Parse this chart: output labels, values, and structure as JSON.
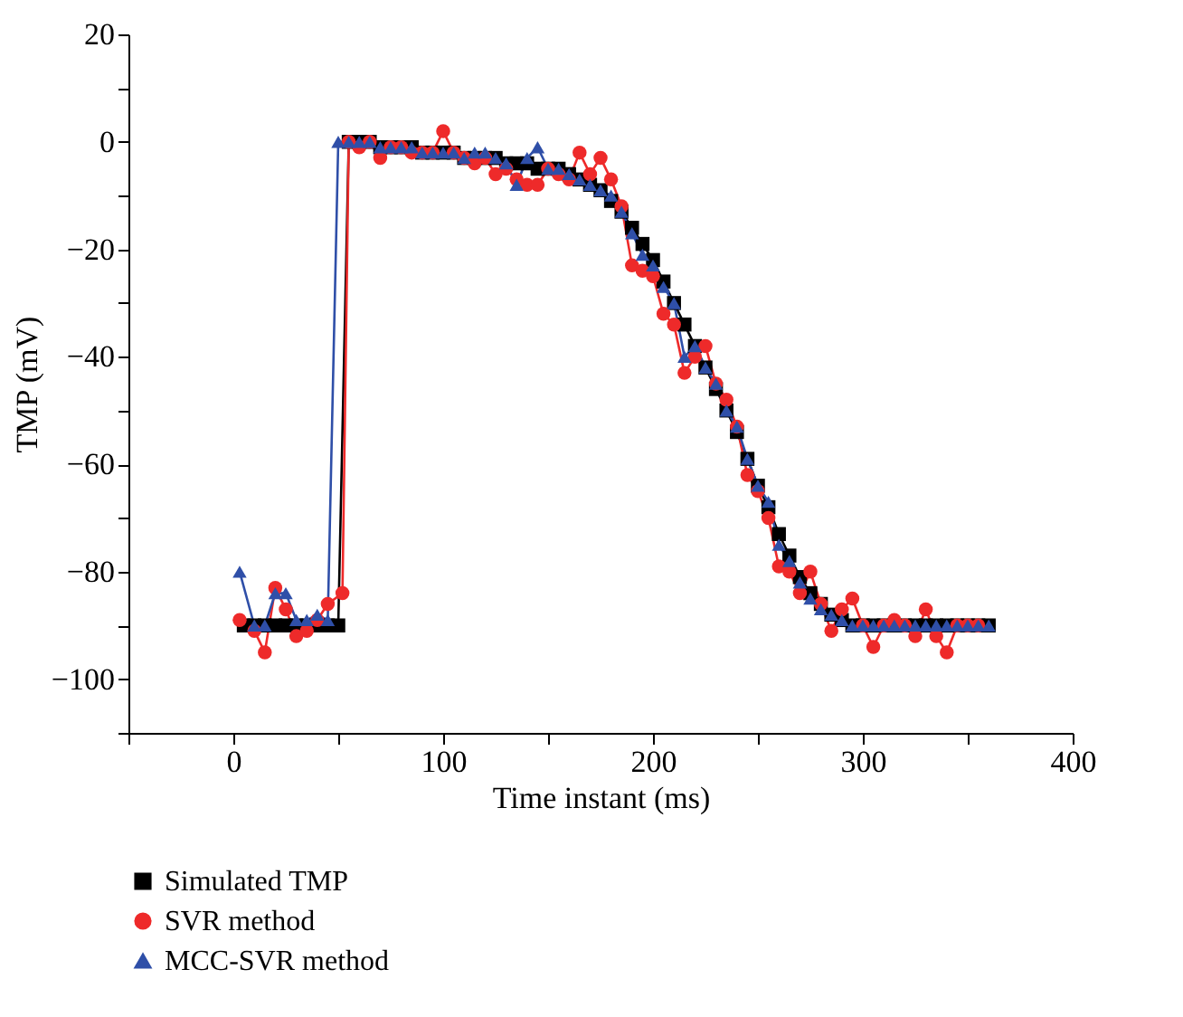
{
  "chart_data": {
    "type": "line",
    "xlabel": "Time instant (ms)",
    "ylabel": "TMP (mV)",
    "xlim": [
      -50,
      400
    ],
    "ylim": [
      -110,
      20
    ],
    "xticks": [
      {
        "value": -50,
        "label": null
      },
      0,
      {
        "value": 50,
        "label": null
      },
      100,
      {
        "value": 150,
        "label": null
      },
      200,
      {
        "value": 250,
        "label": null
      },
      300,
      {
        "value": 350,
        "label": null
      },
      400
    ],
    "yticks": [
      {
        "value": -110,
        "label": null
      },
      {
        "value": -100,
        "label": "−100"
      },
      {
        "value": -90,
        "label": null
      },
      {
        "value": -80,
        "label": "−80"
      },
      {
        "value": -70,
        "label": null
      },
      {
        "value": -60,
        "label": "−60"
      },
      {
        "value": -50,
        "label": null
      },
      {
        "value": -40,
        "label": "−40"
      },
      {
        "value": -30,
        "label": null
      },
      {
        "value": -20,
        "label": "−20"
      },
      {
        "value": -10,
        "label": null
      },
      0,
      {
        "value": 10,
        "label": null
      },
      20
    ],
    "grid": false,
    "legend": "bottom",
    "line_style": "solid",
    "series": [
      {
        "name": "Simulated TMP",
        "color": "#000000",
        "marker": "square",
        "x": [
          5,
          10,
          15,
          20,
          25,
          30,
          35,
          40,
          45,
          50,
          55,
          60,
          65,
          70,
          75,
          80,
          85,
          90,
          95,
          100,
          105,
          110,
          115,
          120,
          125,
          130,
          135,
          140,
          145,
          150,
          155,
          160,
          165,
          170,
          175,
          180,
          185,
          190,
          195,
          200,
          205,
          210,
          215,
          220,
          225,
          230,
          235,
          240,
          245,
          250,
          255,
          260,
          265,
          270,
          275,
          280,
          285,
          290,
          295,
          300,
          305,
          310,
          315,
          320,
          325,
          330,
          335,
          340,
          345,
          350,
          355,
          360
        ],
        "values": [
          -90,
          -90,
          -90,
          -90,
          -90,
          -90,
          -90,
          -90,
          -90,
          -90,
          0,
          0,
          0,
          -1,
          -1,
          -1,
          -1,
          -2,
          -2,
          -2,
          -2,
          -3,
          -3,
          -3,
          -3,
          -4,
          -4,
          -4,
          -5,
          -5,
          -5,
          -6,
          -7,
          -8,
          -9,
          -11,
          -13,
          -16,
          -19,
          -22,
          -26,
          -30,
          -34,
          -38,
          -42,
          -46,
          -50,
          -54,
          -59,
          -64,
          -68,
          -73,
          -77,
          -81,
          -84,
          -86,
          -88,
          -89,
          -90,
          -90,
          -90,
          -90,
          -90,
          -90,
          -90,
          -90,
          -90,
          -90,
          -90,
          -90,
          -90,
          -90
        ]
      },
      {
        "name": "SVR method",
        "color": "#ee2a2a",
        "marker": "circle",
        "x": [
          3,
          10,
          15,
          20,
          25,
          30,
          35,
          40,
          45,
          52,
          55,
          60,
          65,
          70,
          75,
          80,
          85,
          90,
          95,
          100,
          105,
          110,
          115,
          120,
          125,
          130,
          135,
          140,
          145,
          150,
          155,
          160,
          165,
          170,
          175,
          180,
          185,
          190,
          195,
          200,
          205,
          210,
          215,
          220,
          225,
          230,
          235,
          240,
          245,
          250,
          255,
          260,
          265,
          270,
          275,
          280,
          285,
          290,
          295,
          300,
          305,
          310,
          315,
          320,
          325,
          330,
          335,
          340,
          345,
          350,
          355
        ],
        "values": [
          -89,
          -91,
          -95,
          -83,
          -87,
          -92,
          -91,
          -89,
          -86,
          -84,
          0,
          -1,
          0,
          -3,
          -1,
          -1,
          -2,
          -2,
          -2,
          2,
          -2,
          -3,
          -4,
          -3,
          -6,
          -5,
          -7,
          -8,
          -8,
          -5,
          -6,
          -7,
          -2,
          -6,
          -3,
          -7,
          -12,
          -23,
          -24,
          -25,
          -32,
          -34,
          -43,
          -40,
          -38,
          -45,
          -48,
          -53,
          -62,
          -65,
          -70,
          -79,
          -80,
          -84,
          -80,
          -86,
          -91,
          -87,
          -85,
          -90,
          -94,
          -90,
          -89,
          -90,
          -92,
          -87,
          -92,
          -95,
          -90,
          -90,
          -90
        ]
      },
      {
        "name": "MCC-SVR method",
        "color": "#2f4fa8",
        "marker": "triangle",
        "x": [
          3,
          10,
          15,
          20,
          25,
          30,
          35,
          40,
          45,
          50,
          55,
          60,
          65,
          70,
          75,
          80,
          85,
          90,
          95,
          100,
          105,
          110,
          115,
          120,
          125,
          130,
          135,
          140,
          145,
          150,
          155,
          160,
          165,
          170,
          175,
          180,
          185,
          190,
          195,
          200,
          205,
          210,
          215,
          220,
          225,
          230,
          235,
          240,
          245,
          250,
          255,
          260,
          265,
          270,
          275,
          280,
          285,
          290,
          295,
          300,
          305,
          310,
          315,
          320,
          325,
          330,
          335,
          340,
          345,
          350,
          355,
          360
        ],
        "values": [
          -80,
          -90,
          -90,
          -84,
          -84,
          -89,
          -89,
          -88,
          -89,
          0,
          0,
          0,
          0,
          -1,
          -1,
          -1,
          -1,
          -2,
          -2,
          -2,
          -2,
          -3,
          -2,
          -2,
          -3,
          -4,
          -8,
          -3,
          -1,
          -5,
          -5,
          -6,
          -7,
          -8,
          -9,
          -10,
          -13,
          -17,
          -21,
          -23,
          -27,
          -30,
          -40,
          -38,
          -42,
          -45,
          -50,
          -53,
          -59,
          -64,
          -67,
          -75,
          -78,
          -82,
          -85,
          -87,
          -88,
          -89,
          -90,
          -90,
          -90,
          -90,
          -90,
          -90,
          -90,
          -90,
          -90,
          -90,
          -90,
          -90,
          -90,
          -90
        ]
      }
    ]
  }
}
